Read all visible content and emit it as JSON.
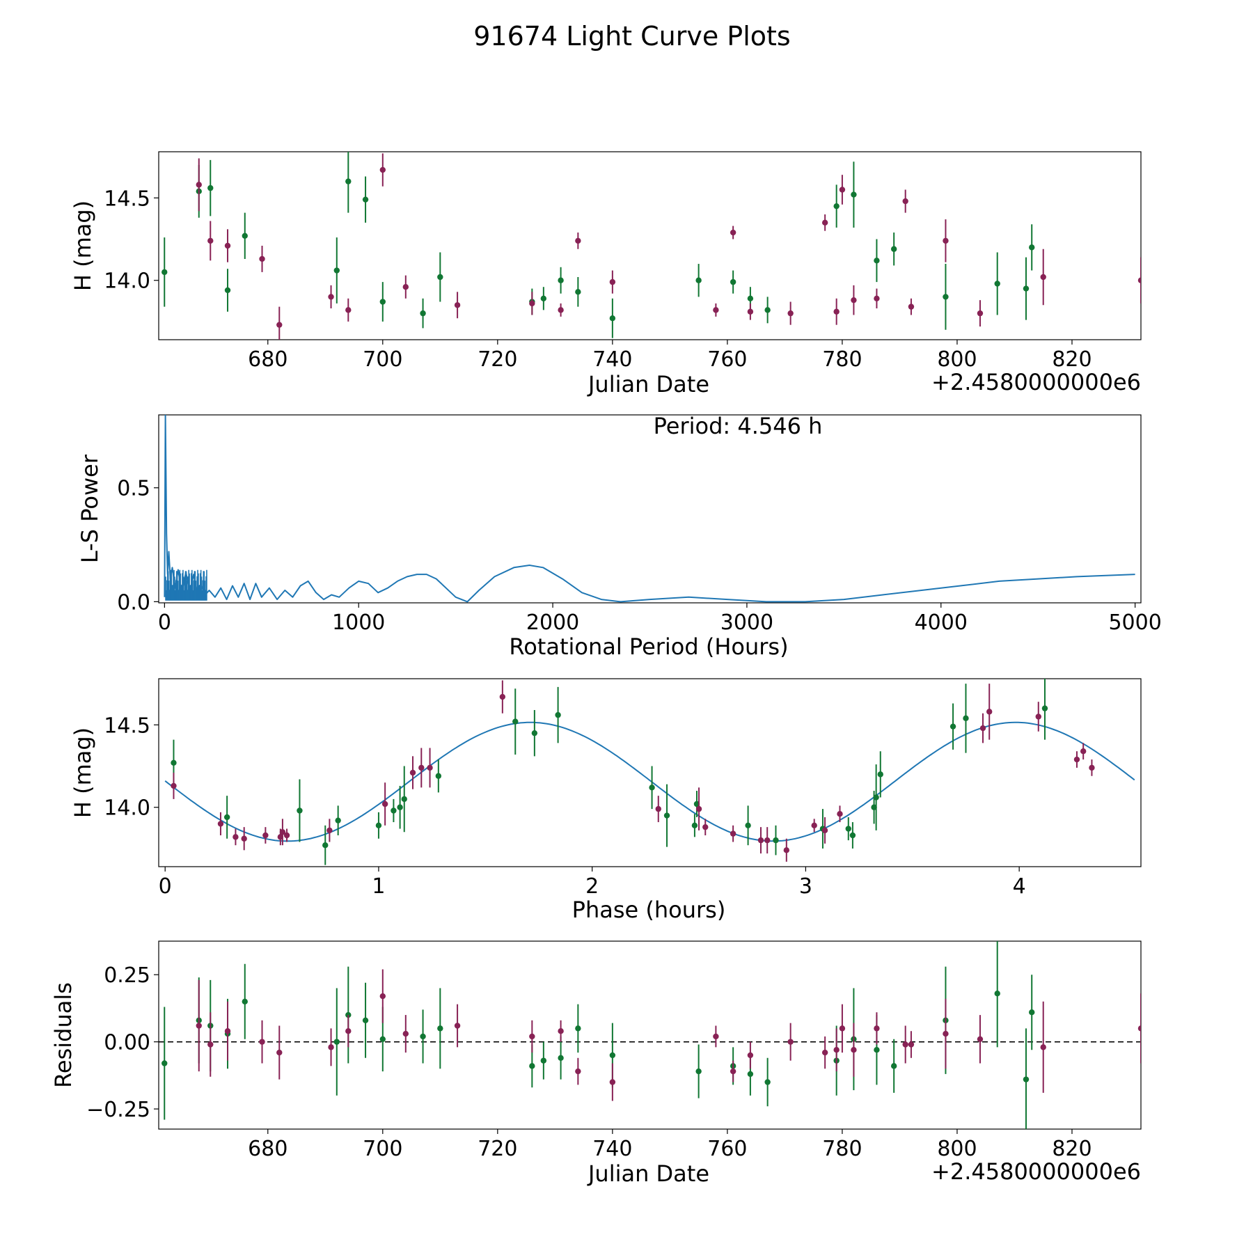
{
  "figure": {
    "title": "91674 Light Curve Plots",
    "colors": {
      "band_g": "#117733",
      "band_r": "#882255",
      "model": "#1f77b4",
      "zero_line": "#000000"
    }
  },
  "chart_data": [
    {
      "id": "lightcurve",
      "type": "scatter",
      "title": "",
      "xlabel": "Julian Date",
      "ylabel": "H (mag)",
      "x_offset_label": "+2.4580000000e6",
      "xlim": [
        661,
        832
      ],
      "ylim": [
        13.64,
        14.78
      ],
      "xticks": [
        680,
        700,
        720,
        740,
        760,
        780,
        800,
        820
      ],
      "xtick_labels": [
        "680",
        "700",
        "720",
        "740",
        "760",
        "780",
        "800",
        "820"
      ],
      "yticks": [
        14.0,
        14.5
      ],
      "ytick_labels": [
        "14.0",
        "14.5"
      ],
      "series": [
        {
          "name": "g",
          "color": "#117733",
          "x": [
            662,
            668,
            670,
            673,
            676,
            692,
            694,
            697,
            700,
            707,
            710,
            726,
            728,
            731,
            734,
            740,
            755,
            761,
            764,
            767,
            779,
            782,
            786,
            789,
            798,
            807,
            812,
            813
          ],
          "y": [
            14.05,
            14.54,
            14.56,
            13.94,
            14.27,
            14.06,
            14.6,
            14.49,
            13.87,
            13.8,
            14.02,
            13.87,
            13.89,
            14.0,
            13.93,
            13.77,
            14.0,
            13.99,
            13.89,
            13.82,
            14.45,
            14.52,
            14.12,
            14.19,
            13.9,
            13.98,
            13.95,
            14.2
          ],
          "err": [
            0.21,
            0.16,
            0.17,
            0.13,
            0.14,
            0.2,
            0.19,
            0.14,
            0.12,
            0.09,
            0.15,
            0.08,
            0.07,
            0.08,
            0.09,
            0.12,
            0.1,
            0.07,
            0.07,
            0.08,
            0.13,
            0.2,
            0.13,
            0.1,
            0.2,
            0.19,
            0.19,
            0.14
          ]
        },
        {
          "name": "r",
          "color": "#882255",
          "x": [
            668,
            670,
            673,
            679,
            682,
            691,
            694,
            700,
            704,
            713,
            726,
            731,
            734,
            740,
            758,
            761,
            764,
            771,
            777,
            779,
            780,
            782,
            786,
            791,
            792,
            798,
            804,
            815,
            832
          ],
          "y": [
            14.58,
            14.24,
            14.21,
            14.13,
            13.73,
            13.9,
            13.82,
            14.67,
            13.96,
            13.85,
            13.86,
            13.82,
            14.24,
            13.99,
            13.82,
            14.29,
            13.81,
            13.8,
            14.35,
            13.81,
            14.55,
            13.88,
            13.89,
            14.48,
            13.84,
            14.24,
            13.8,
            14.02,
            14.0
          ]
        },
        {
          "name": "r-err",
          "err": [
            0.16,
            0.12,
            0.1,
            0.08,
            0.11,
            0.07,
            0.07,
            0.1,
            0.07,
            0.08,
            0.07,
            0.04,
            0.05,
            0.07,
            0.04,
            0.04,
            0.05,
            0.07,
            0.05,
            0.08,
            0.09,
            0.09,
            0.06,
            0.07,
            0.05,
            0.13,
            0.08,
            0.17,
            0.14
          ]
        }
      ]
    },
    {
      "id": "periodogram",
      "type": "line",
      "title": "",
      "xlabel": "Rotational Period (Hours)",
      "ylabel": "L-S Power",
      "annotation": "Period: 4.546 h",
      "xlim": [
        -30,
        5030
      ],
      "ylim": [
        -0.005,
        0.82
      ],
      "xticks": [
        0,
        1000,
        2000,
        3000,
        4000,
        5000
      ],
      "xtick_labels": [
        "0",
        "1000",
        "2000",
        "3000",
        "4000",
        "5000"
      ],
      "yticks": [
        0.0,
        0.5
      ],
      "ytick_labels": [
        "0.0",
        "0.5"
      ],
      "series": [
        {
          "name": "power",
          "color": "#1f77b4",
          "x": [
            0,
            4.5,
            10,
            16,
            22,
            30,
            40,
            55,
            70,
            90,
            110,
            130,
            150,
            170,
            190,
            210,
            230,
            260,
            290,
            320,
            350,
            380,
            410,
            440,
            470,
            500,
            540,
            580,
            620,
            660,
            700,
            740,
            780,
            820,
            860,
            900,
            950,
            1000,
            1050,
            1100,
            1150,
            1200,
            1250,
            1300,
            1350,
            1400,
            1450,
            1500,
            1560,
            1620,
            1700,
            1800,
            1880,
            1950,
            2050,
            2150,
            2250,
            2350,
            2500,
            2700,
            2900,
            3100,
            3300,
            3500,
            3700,
            3900,
            4100,
            4300,
            4500,
            4700,
            4850,
            5000
          ],
          "y": [
            0.02,
            0.82,
            0.3,
            0.12,
            0.22,
            0.1,
            0.15,
            0.06,
            0.14,
            0.03,
            0.13,
            0.04,
            0.12,
            0.02,
            0.07,
            0.03,
            0.05,
            0.02,
            0.06,
            0.01,
            0.07,
            0.02,
            0.08,
            0.01,
            0.08,
            0.02,
            0.06,
            0.01,
            0.05,
            0.02,
            0.07,
            0.09,
            0.04,
            0.01,
            0.03,
            0.02,
            0.06,
            0.09,
            0.08,
            0.04,
            0.06,
            0.09,
            0.11,
            0.12,
            0.12,
            0.1,
            0.06,
            0.02,
            0.0,
            0.05,
            0.11,
            0.15,
            0.16,
            0.15,
            0.1,
            0.04,
            0.01,
            0.0,
            0.01,
            0.02,
            0.01,
            0.0,
            0.0,
            0.01,
            0.03,
            0.05,
            0.07,
            0.09,
            0.1,
            0.11,
            0.115,
            0.12
          ]
        }
      ]
    },
    {
      "id": "phased",
      "type": "scatter",
      "title": "",
      "xlabel": "Phase (hours)",
      "ylabel": "H (mag)",
      "xlim": [
        -0.03,
        4.57
      ],
      "ylim": [
        13.64,
        14.78
      ],
      "xticks": [
        0,
        1,
        2,
        3,
        4
      ],
      "xtick_labels": [
        "0",
        "1",
        "2",
        "3",
        "4"
      ],
      "yticks": [
        14.0,
        14.5
      ],
      "ytick_labels": [
        "14.0",
        "14.5"
      ],
      "model": {
        "type": "sinusoid",
        "mean": 14.155,
        "amplitude": 0.36,
        "period": 2.273,
        "peak_phase": 1.71,
        "color": "#1f77b4"
      },
      "series": [
        {
          "name": "g",
          "color": "#117733",
          "x": [
            0.04,
            0.29,
            0.63,
            0.75,
            0.81,
            1.0,
            1.07,
            1.1,
            1.12,
            1.28,
            1.64,
            1.73,
            1.84,
            2.28,
            2.35,
            2.48,
            2.49,
            2.73,
            2.86,
            3.08,
            3.2,
            3.22,
            3.32,
            3.33,
            3.35,
            3.69,
            3.75,
            4.12
          ],
          "y": [
            14.27,
            13.94,
            13.98,
            13.77,
            13.92,
            13.89,
            13.98,
            14.0,
            14.05,
            14.19,
            14.52,
            14.45,
            14.56,
            14.12,
            13.95,
            13.89,
            14.02,
            13.89,
            13.8,
            13.87,
            13.87,
            13.83,
            14.0,
            14.06,
            14.2,
            14.49,
            14.54,
            14.6
          ],
          "err": [
            0.14,
            0.13,
            0.19,
            0.12,
            0.09,
            0.08,
            0.07,
            0.13,
            0.2,
            0.1,
            0.2,
            0.14,
            0.17,
            0.13,
            0.19,
            0.07,
            0.08,
            0.12,
            0.09,
            0.12,
            0.07,
            0.08,
            0.1,
            0.2,
            0.14,
            0.14,
            0.21,
            0.19
          ]
        },
        {
          "name": "r",
          "color": "#882255",
          "x": [
            0.04,
            0.26,
            0.33,
            0.37,
            0.47,
            0.54,
            0.55,
            0.57,
            0.77,
            1.03,
            1.16,
            1.2,
            1.24,
            1.58,
            2.31,
            2.5,
            2.53,
            2.66,
            2.79,
            2.82,
            2.91,
            3.04,
            3.16,
            3.09,
            3.83,
            3.86,
            4.09,
            4.27,
            4.3,
            4.34
          ],
          "y": [
            14.13,
            13.9,
            13.82,
            13.81,
            13.83,
            13.82,
            13.85,
            13.83,
            13.86,
            14.02,
            14.21,
            14.24,
            14.24,
            14.67,
            13.99,
            13.99,
            13.88,
            13.84,
            13.8,
            13.8,
            13.74,
            13.89,
            13.96,
            13.86,
            14.48,
            14.58,
            14.55,
            14.29,
            14.34,
            14.24
          ]
        },
        {
          "name": "r-err",
          "err": [
            0.08,
            0.07,
            0.05,
            0.07,
            0.05,
            0.05,
            0.08,
            0.04,
            0.07,
            0.13,
            0.1,
            0.12,
            0.12,
            0.1,
            0.08,
            0.13,
            0.05,
            0.05,
            0.08,
            0.08,
            0.07,
            0.04,
            0.05,
            0.08,
            0.09,
            0.17,
            0.09,
            0.05,
            0.05,
            0.05
          ]
        }
      ]
    },
    {
      "id": "residuals",
      "type": "scatter",
      "title": "",
      "xlabel": "Julian Date",
      "ylabel": "Residuals",
      "x_offset_label": "+2.4580000000e6",
      "xlim": [
        661,
        832
      ],
      "ylim": [
        -0.325,
        0.375
      ],
      "xticks": [
        680,
        700,
        720,
        740,
        760,
        780,
        800,
        820
      ],
      "xtick_labels": [
        "680",
        "700",
        "720",
        "740",
        "760",
        "780",
        "800",
        "820"
      ],
      "yticks": [
        -0.25,
        0.0,
        0.25
      ],
      "ytick_labels": [
        "−0.25",
        "0.00",
        "0.25"
      ],
      "hline": 0.0,
      "series": [
        {
          "name": "g",
          "color": "#117733",
          "x": [
            662,
            668,
            670,
            673,
            676,
            692,
            694,
            697,
            700,
            707,
            710,
            726,
            728,
            731,
            734,
            740,
            755,
            761,
            764,
            767,
            779,
            782,
            786,
            789,
            798,
            807,
            812,
            813
          ],
          "y": [
            -0.08,
            0.08,
            0.06,
            0.03,
            0.15,
            0.0,
            0.1,
            0.08,
            0.01,
            0.02,
            0.05,
            -0.09,
            -0.07,
            -0.06,
            0.05,
            -0.05,
            -0.11,
            -0.09,
            -0.12,
            -0.15,
            -0.07,
            0.01,
            -0.03,
            -0.09,
            0.08,
            0.18,
            -0.14,
            0.11
          ],
          "err": [
            0.21,
            0.16,
            0.17,
            0.13,
            0.14,
            0.2,
            0.18,
            0.14,
            0.12,
            0.1,
            0.15,
            0.08,
            0.07,
            0.08,
            0.09,
            0.12,
            0.1,
            0.07,
            0.08,
            0.09,
            0.13,
            0.19,
            0.13,
            0.1,
            0.2,
            0.2,
            0.19,
            0.14
          ]
        },
        {
          "name": "r",
          "color": "#882255",
          "x": [
            668,
            670,
            673,
            679,
            682,
            691,
            694,
            700,
            704,
            713,
            726,
            731,
            734,
            740,
            758,
            761,
            764,
            771,
            777,
            779,
            780,
            782,
            786,
            791,
            792,
            798,
            804,
            815,
            832
          ],
          "y": [
            0.06,
            -0.01,
            0.04,
            0.0,
            -0.04,
            -0.02,
            0.04,
            0.17,
            0.03,
            0.06,
            0.02,
            0.04,
            -0.11,
            -0.15,
            0.02,
            -0.11,
            -0.05,
            0.0,
            -0.04,
            -0.03,
            0.05,
            -0.03,
            0.05,
            -0.01,
            -0.01,
            0.03,
            0.01,
            -0.02,
            0.05
          ]
        },
        {
          "name": "r-err",
          "err": [
            0.17,
            0.12,
            0.11,
            0.08,
            0.1,
            0.07,
            0.06,
            0.1,
            0.07,
            0.08,
            0.06,
            0.04,
            0.05,
            0.07,
            0.04,
            0.04,
            0.05,
            0.07,
            0.06,
            0.08,
            0.09,
            0.1,
            0.06,
            0.07,
            0.05,
            0.13,
            0.09,
            0.17,
            0.13
          ]
        }
      ]
    }
  ]
}
